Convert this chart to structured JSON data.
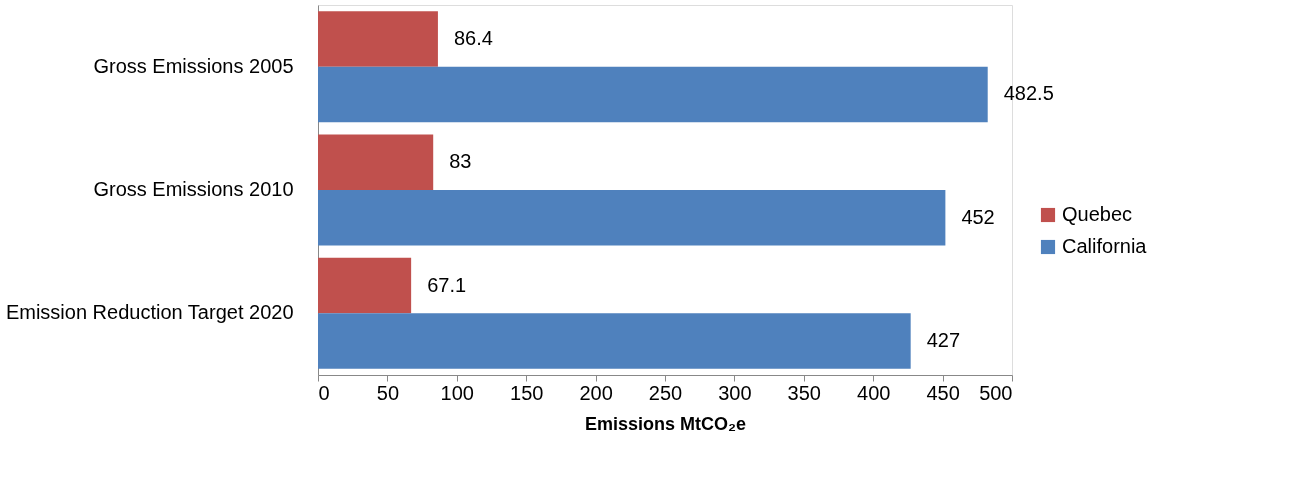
{
  "chart_data": {
    "type": "bar",
    "orientation": "horizontal",
    "xlabel": "Emissions MtCO₂e",
    "categories": [
      "Gross Emissions 2005",
      "Gross Emissions 2010",
      "Emission Reduction Target 2020"
    ],
    "series": [
      {
        "name": "Quebec",
        "color": "#c0504d",
        "values": [
          86.4,
          83,
          67.1
        ]
      },
      {
        "name": "California",
        "color": "#4f81bd",
        "values": [
          482.5,
          452,
          427
        ]
      }
    ],
    "xlim": [
      0,
      500
    ],
    "xticks": [
      0,
      50,
      100,
      150,
      200,
      250,
      300,
      350,
      400,
      450,
      500
    ],
    "grid": false,
    "legend": "right",
    "data_labels": true
  }
}
